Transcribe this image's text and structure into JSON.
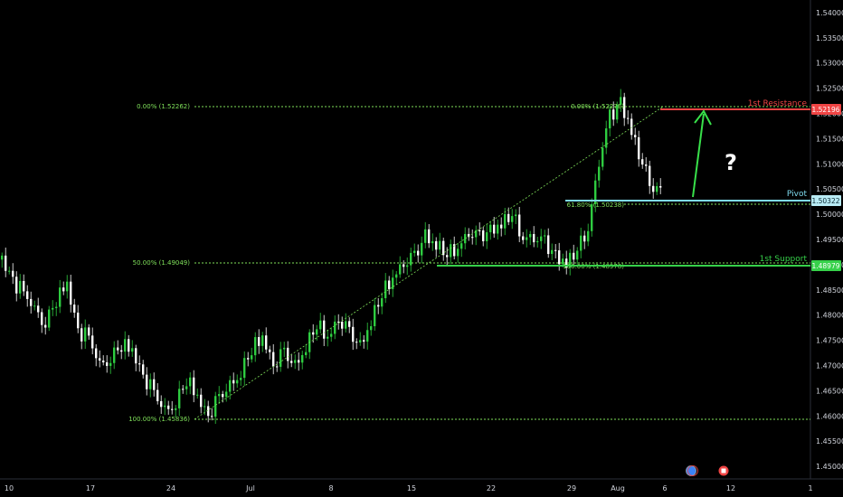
{
  "colors": {
    "background": "#000000",
    "up": "#2ecc40",
    "down": "#ffffff",
    "fib": "#7fe05a",
    "resistance": "#ef4444",
    "pivot": "#7fdbef",
    "support": "#36d14a",
    "arrow": "#38e04a",
    "axis_text": "#d1d4dc"
  },
  "chart_data": {
    "type": "candlestick",
    "x_ticks": [
      "10",
      "17",
      "24",
      "Jul",
      "8",
      "15",
      "22",
      "29",
      "Aug",
      "6",
      "12",
      "1"
    ],
    "y_ticks": [
      "1.54000",
      "1.53500",
      "1.53000",
      "1.52500",
      "1.52000",
      "1.51500",
      "1.51000",
      "1.50500",
      "1.50000",
      "1.49500",
      "1.49000",
      "1.48500",
      "1.48000",
      "1.47500",
      "1.47000",
      "1.46500",
      "1.46000",
      "1.45500",
      "1.45000"
    ],
    "ylim": [
      1.4475,
      1.5425
    ],
    "levels": [
      {
        "name": "1st Resistance",
        "value": 1.52196,
        "label": "1.52196",
        "color": "#ef4444"
      },
      {
        "name": "Pivot",
        "value": 1.50322,
        "label": "1.50322",
        "color": "#7fdbef"
      },
      {
        "name": "1st Support",
        "value": 1.48979,
        "label": "1.48979",
        "color": "#36d14a"
      }
    ],
    "fib_retracement_1": [
      {
        "label": "0.00% (1.52262)",
        "value": 1.52262
      },
      {
        "label": "50.00% (1.49049)",
        "value": 1.49049
      },
      {
        "label": "100.00% (1.45836)",
        "value": 1.45836
      }
    ],
    "fib_retracement_2": [
      {
        "label": "0.00% (1.52275)",
        "value": 1.52275
      },
      {
        "label": "61.80% (1.50238)",
        "value": 1.50238
      },
      {
        "label": "100.00% (1.48978)",
        "value": 1.48978
      }
    ],
    "annotation": "?",
    "anchors": [
      1.491,
      1.487,
      1.484,
      1.481,
      1.479,
      1.483,
      1.486,
      1.477,
      1.475,
      1.47,
      1.472,
      1.474,
      1.473,
      1.468,
      1.464,
      1.461,
      1.463,
      1.467,
      1.464,
      1.46,
      1.463,
      1.466,
      1.469,
      1.473,
      1.476,
      1.47,
      1.472,
      1.47,
      1.474,
      1.478,
      1.476,
      1.479,
      1.476,
      1.474,
      1.479,
      1.484,
      1.488,
      1.49,
      1.491,
      1.496,
      1.494,
      1.492,
      1.494,
      1.496,
      1.495,
      1.497,
      1.498,
      1.5,
      1.496,
      1.495,
      1.494,
      1.492,
      1.49,
      1.493,
      1.498,
      1.51,
      1.519,
      1.5225,
      1.516,
      1.51,
      1.506,
      1.504
    ]
  },
  "badges": {
    "resistance_price": "1.52196",
    "pivot_price": "1.50322",
    "support_price": "1.48979"
  }
}
